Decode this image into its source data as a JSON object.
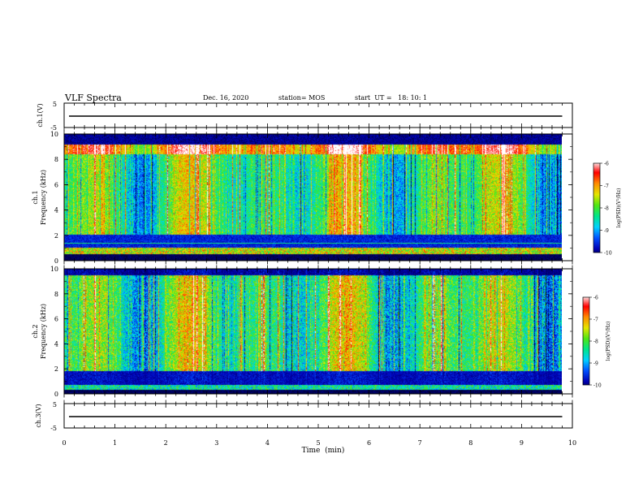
{
  "header": {
    "title": "VLF Spectra",
    "date": "Dec. 16, 2020",
    "station": "station= MOS",
    "start": "start  UT =   18: 10: 1"
  },
  "chart_data": [
    {
      "type": "line",
      "panel": "ch1-waveform",
      "ylabel": "ch.1(V)",
      "ylim": [
        -5,
        5
      ],
      "yticks": [
        "5",
        "-5"
      ],
      "x": [
        0,
        9.8
      ],
      "values": [
        0,
        0
      ]
    },
    {
      "type": "heatmap",
      "panel": "ch1-spectrogram",
      "ylabel": "ch.1",
      "ylabel2": "Frequency  (kHz)",
      "ylim": [
        0,
        10
      ],
      "yticks": [
        "0",
        "2",
        "4",
        "6",
        "8",
        "10"
      ],
      "xlim": [
        0,
        9.8
      ],
      "colorbar": {
        "label": "log(PSD)(V²/Hz)",
        "range": [
          -10,
          -6
        ],
        "ticks": [
          "-6",
          "-7",
          "-8",
          "-9",
          "-10"
        ]
      }
    },
    {
      "type": "heatmap",
      "panel": "ch2-spectrogram",
      "ylabel": "ch.2",
      "ylabel2": "Frequency  (kHz)",
      "ylim": [
        0,
        10
      ],
      "yticks": [
        "0",
        "2",
        "4",
        "6",
        "8",
        "10"
      ],
      "xlim": [
        0,
        9.8
      ],
      "colorbar": {
        "label": "log(PSD)(V²/Hz)",
        "range": [
          -10,
          -6
        ],
        "ticks": [
          "-6",
          "-7",
          "-8",
          "-9",
          "-10"
        ]
      }
    },
    {
      "type": "line",
      "panel": "ch3-waveform",
      "ylabel": "ch.3(V)",
      "ylim": [
        -5,
        5
      ],
      "yticks": [
        "5",
        "-5"
      ],
      "x": [
        0,
        9.8
      ],
      "values": [
        0,
        0
      ]
    }
  ],
  "xaxis": {
    "label": "Time  (min)",
    "xlim": [
      0,
      10
    ],
    "ticks": [
      "0",
      "1",
      "2",
      "3",
      "4",
      "5",
      "6",
      "7",
      "8",
      "9",
      "10"
    ]
  },
  "colors": {
    "colormap": [
      "#000000",
      "#0000b4",
      "#0050ff",
      "#00d2ff",
      "#00e68c",
      "#50e614",
      "#e6e600",
      "#ff8c00",
      "#ff0000",
      "#ffffff"
    ]
  }
}
